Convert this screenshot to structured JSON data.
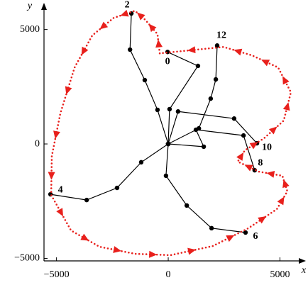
{
  "chart_data": {
    "type": "line",
    "xlabel": "x",
    "ylabel": "y",
    "xlim": [
      -5560,
      5970
    ],
    "ylim": [
      -5110,
      5980
    ],
    "xticks": [
      {
        "value": -5000,
        "label": "−5000"
      },
      0,
      5000
    ],
    "yticks": [
      {
        "value": -5000,
        "label": "−5000"
      },
      0,
      5000
    ],
    "series": [
      {
        "name": "0",
        "color": "#000000",
        "x": [
          0,
          60,
          1330,
          -30
        ],
        "y": [
          0,
          1520,
          3410,
          4020
        ]
      },
      {
        "name": "2",
        "color": "#000000",
        "x": [
          0,
          -480,
          -1050,
          -1710,
          -1650
        ],
        "y": [
          0,
          1490,
          2790,
          4120,
          5700
        ]
      },
      {
        "name": "4",
        "color": "#000000",
        "x": [
          0,
          -1210,
          -2290,
          -3650,
          -5270
        ],
        "y": [
          0,
          -800,
          -1920,
          -2450,
          -2200
        ]
      },
      {
        "name": "6",
        "color": "#000000",
        "x": [
          0,
          -100,
          830,
          1940,
          3460
        ],
        "y": [
          0,
          -1390,
          -2690,
          -3680,
          -3870
        ]
      },
      {
        "name": "8",
        "color": "#000000",
        "x": [
          0,
          1590,
          1240,
          3370,
          3870
        ],
        "y": [
          0,
          -120,
          620,
          370,
          -1150
        ]
      },
      {
        "name": "10",
        "color": "#000000",
        "x": [
          0,
          440,
          2950,
          3970
        ],
        "y": [
          0,
          1420,
          1110,
          30
        ]
      },
      {
        "name": "12",
        "color": "#000000",
        "x": [
          0,
          1370,
          1900,
          2130,
          2190
        ],
        "y": [
          0,
          680,
          1980,
          2820,
          4300
        ]
      },
      {
        "color": "#e8201c",
        "style": "dotted",
        "closed": true,
        "arrows": true,
        "x": [
          -380,
          -480,
          -1020,
          -1490,
          -2440,
          -3400,
          -4190,
          -4830,
          -5210,
          -5240,
          -4350,
          -3080,
          -1490,
          100,
          2000,
          3590,
          4860,
          5330,
          5110,
          4060,
          3110,
          3430,
          4290,
          5170,
          5490,
          4920,
          3750,
          2480
        ],
        "y": [
          3960,
          4800,
          5420,
          5820,
          5510,
          4740,
          3340,
          1330,
          -530,
          -2230,
          -3780,
          -4490,
          -4800,
          -4860,
          -4460,
          -3680,
          -2850,
          -2070,
          -1390,
          -1210,
          -770,
          -280,
          250,
          1020,
          2260,
          3340,
          3870,
          4240
        ]
      }
    ]
  }
}
